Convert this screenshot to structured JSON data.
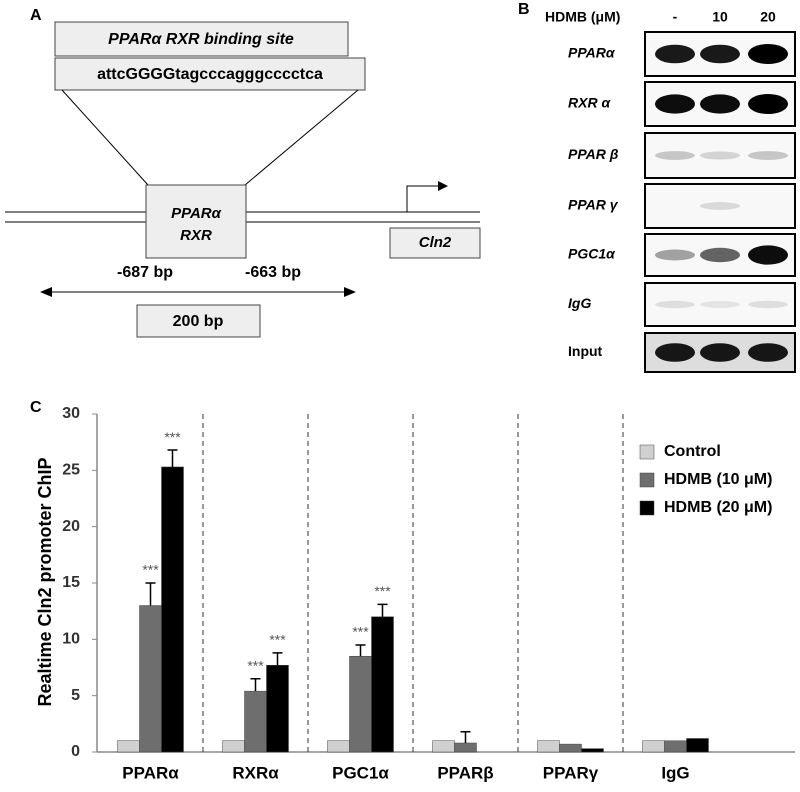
{
  "panel_a": {
    "label": "A",
    "site_title": "PPARα RXR binding site",
    "sequence": "attcGGGGtagcccagggcccctca",
    "factor_line1": "PPARα",
    "factor_line2": "RXR",
    "gene": "Cln2",
    "start": "-687 bp",
    "end": "-663 bp",
    "length": "200 bp"
  },
  "panel_b": {
    "label": "B",
    "treatment": "HDMB (μM)",
    "lanes": [
      "-",
      "10",
      "20"
    ],
    "rows": [
      "PPARα",
      "RXR α",
      "PPAR β",
      "PPAR γ",
      "PGC1α",
      "IgG",
      "Input"
    ]
  },
  "panel_c_label": "C",
  "chart_data": {
    "type": "bar",
    "ylabel": "Realtime Cln2  promoter ChIP",
    "categories": [
      "PPARα",
      "RXRα",
      "PGC1α",
      "PPARβ",
      "PPARγ",
      "IgG"
    ],
    "series": [
      {
        "name": "Control",
        "color": "#d0d0d0",
        "values": [
          1,
          1,
          1,
          1,
          1,
          1
        ]
      },
      {
        "name": "HDMB (10 μM)",
        "color": "#6e6e6e",
        "values": [
          13,
          5.4,
          8.5,
          0.8,
          0.7,
          1
        ],
        "errors": [
          2,
          1.1,
          1,
          1,
          0,
          0
        ],
        "significance": [
          "***",
          "***",
          "***",
          null,
          null,
          null
        ]
      },
      {
        "name": "HDMB (20 μM)",
        "color": "#000000",
        "values": [
          25.3,
          7.7,
          12,
          0,
          0.3,
          1.2
        ],
        "errors": [
          1.5,
          1.1,
          1.1,
          0,
          0,
          0
        ],
        "significance": [
          "***",
          "***",
          "***",
          null,
          null,
          null
        ]
      }
    ],
    "ylim": [
      0,
      30
    ],
    "yticks": [
      0,
      5,
      10,
      15,
      20,
      25,
      30
    ],
    "grid": false,
    "legend": "upper-right"
  }
}
